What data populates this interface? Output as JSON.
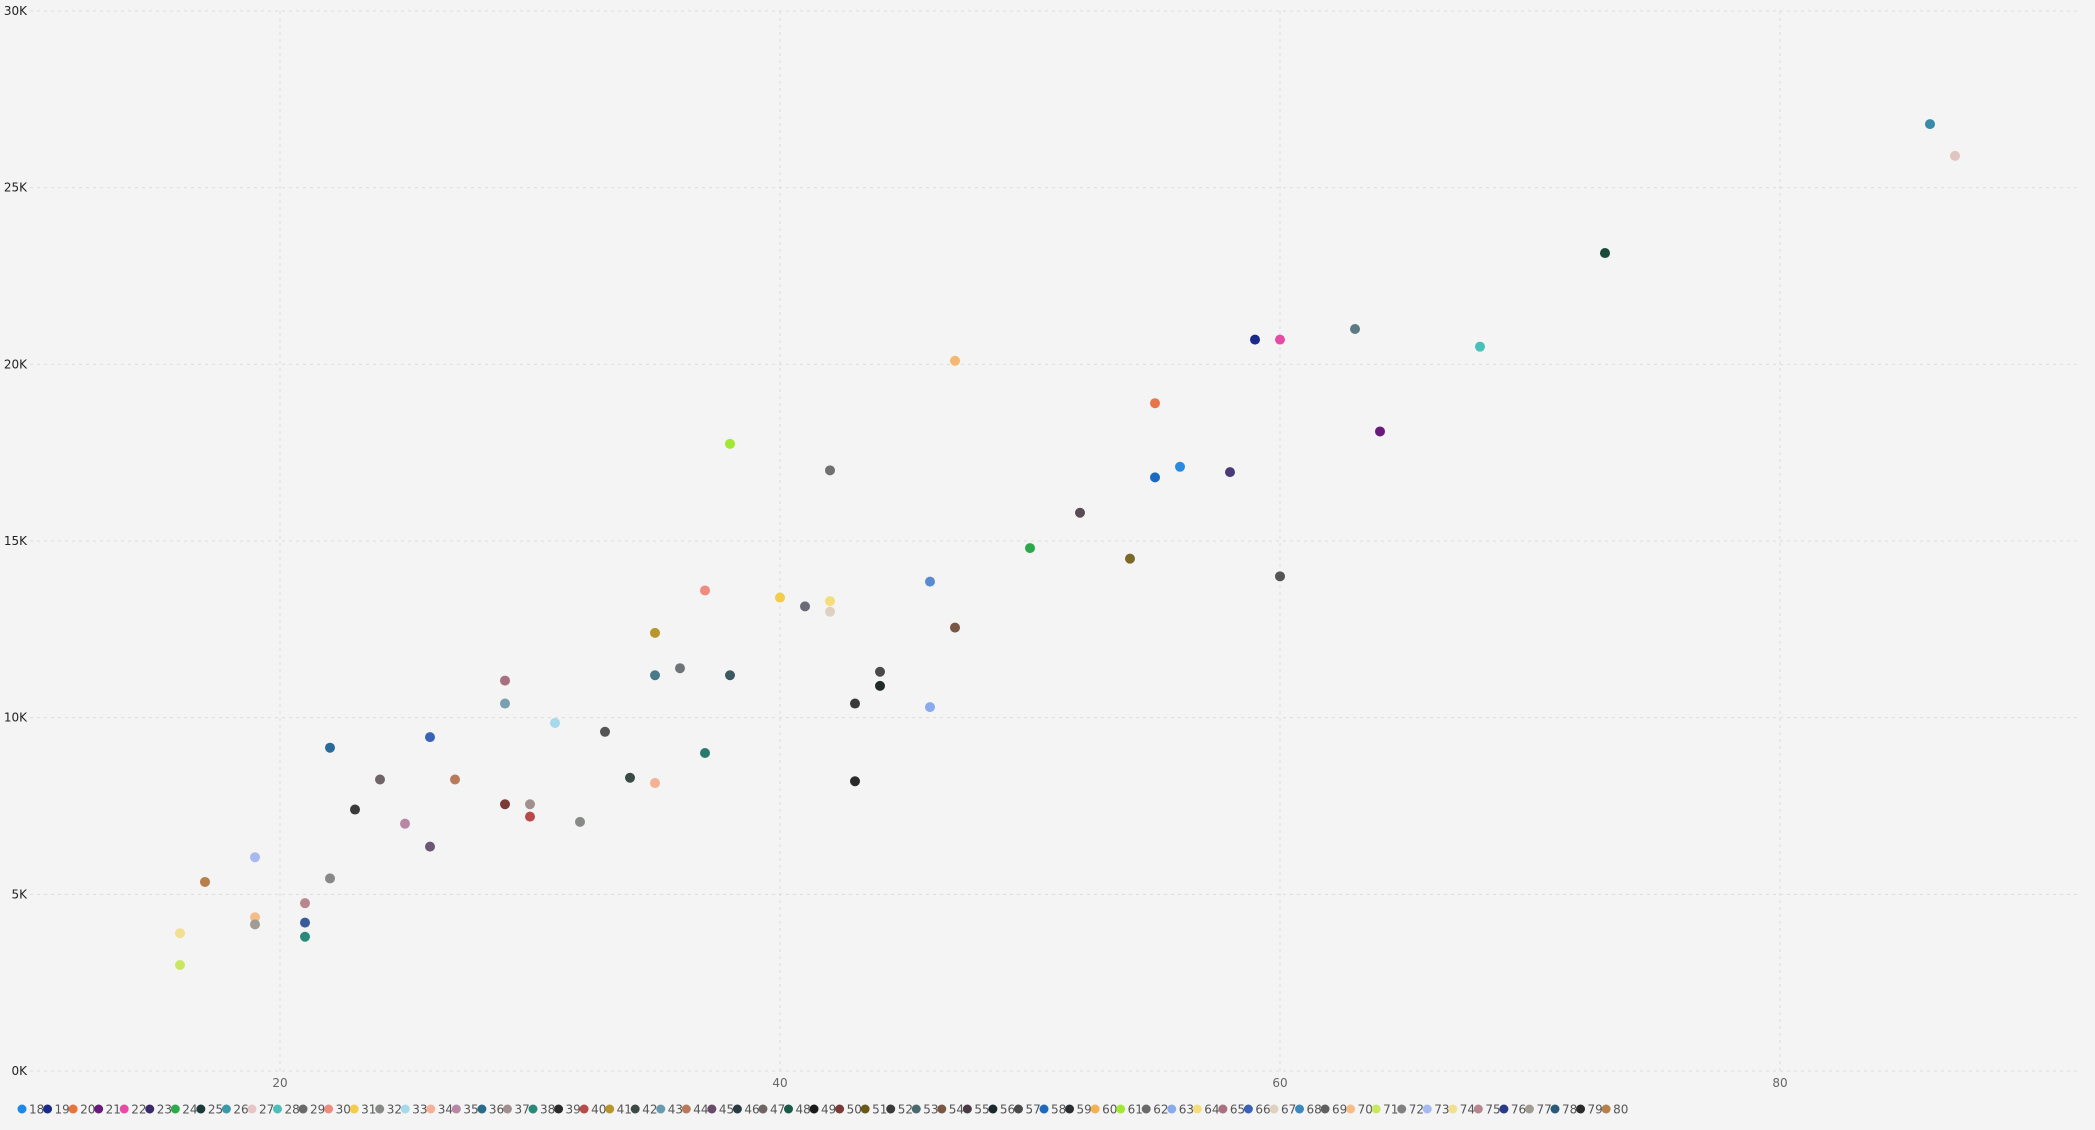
{
  "chart_data": {
    "type": "scatter",
    "title": "",
    "xlabel": "",
    "ylabel": "",
    "xlim": [
      10,
      92
    ],
    "ylim": [
      0,
      30000
    ],
    "xticks": [
      20,
      40,
      60,
      80
    ],
    "xtick_labels": [
      "20",
      "40",
      "60",
      "80"
    ],
    "yticks": [
      0,
      5000,
      10000,
      15000,
      20000,
      25000,
      30000
    ],
    "ytick_labels": [
      "0K",
      "5K",
      "10K",
      "15K",
      "20K",
      "25K",
      "30K"
    ],
    "grid": true,
    "legend_position": "bottom",
    "points": [
      {
        "x": 16,
        "y": 3900,
        "color": "#f2e090"
      },
      {
        "x": 16,
        "y": 3000,
        "color": "#c9e860"
      },
      {
        "x": 17,
        "y": 5350,
        "color": "#b5804a"
      },
      {
        "x": 19,
        "y": 6050,
        "color": "#a8b8f0"
      },
      {
        "x": 19,
        "y": 4350,
        "color": "#f5bd85"
      },
      {
        "x": 19,
        "y": 4150,
        "color": "#a09c92"
      },
      {
        "x": 21,
        "y": 4750,
        "color": "#b8868e"
      },
      {
        "x": 21,
        "y": 4200,
        "color": "#3a5a9a"
      },
      {
        "x": 21,
        "y": 3800,
        "color": "#2a8a7a"
      },
      {
        "x": 22,
        "y": 9150,
        "color": "#2a6a9a"
      },
      {
        "x": 22,
        "y": 5450,
        "color": "#888888"
      },
      {
        "x": 23,
        "y": 7400,
        "color": "#3a3a3a"
      },
      {
        "x": 24,
        "y": 8250,
        "color": "#706468"
      },
      {
        "x": 25,
        "y": 7000,
        "color": "#b887a5"
      },
      {
        "x": 26,
        "y": 9450,
        "color": "#3a62b8"
      },
      {
        "x": 26,
        "y": 6350,
        "color": "#6a5876"
      },
      {
        "x": 27,
        "y": 8250,
        "color": "#b87a5a"
      },
      {
        "x": 29,
        "y": 11050,
        "color": "#a87080"
      },
      {
        "x": 29,
        "y": 10400,
        "color": "#7aa0b0"
      },
      {
        "x": 29,
        "y": 7550,
        "color": "#7a3a36"
      },
      {
        "x": 30,
        "y": 7550,
        "color": "#a09090"
      },
      {
        "x": 30,
        "y": 7200,
        "color": "#b84a4a"
      },
      {
        "x": 31,
        "y": 9850,
        "color": "#a8d8ec"
      },
      {
        "x": 32,
        "y": 7050,
        "color": "#888a88"
      },
      {
        "x": 33,
        "y": 9600,
        "color": "#555555"
      },
      {
        "x": 34,
        "y": 8300,
        "color": "#3a4a44"
      },
      {
        "x": 35,
        "y": 12400,
        "color": "#b8962a"
      },
      {
        "x": 35,
        "y": 11200,
        "color": "#4a7a8a"
      },
      {
        "x": 35,
        "y": 8150,
        "color": "#f5b095"
      },
      {
        "x": 36,
        "y": 11400,
        "color": "#707478"
      },
      {
        "x": 37,
        "y": 13600,
        "color": "#ee8c82"
      },
      {
        "x": 37,
        "y": 9000,
        "color": "#2a7a6a"
      },
      {
        "x": 38,
        "y": 17750,
        "color": "#a2e830"
      },
      {
        "x": 38,
        "y": 11200,
        "color": "#3a5a60"
      },
      {
        "x": 40,
        "y": 13400,
        "color": "#f2cc4a"
      },
      {
        "x": 41,
        "y": 13150,
        "color": "#6a6a7a"
      },
      {
        "x": 42,
        "y": 17000,
        "color": "#707070"
      },
      {
        "x": 42,
        "y": 13300,
        "color": "#f5dd7a"
      },
      {
        "x": 42,
        "y": 13000,
        "color": "#e0d0c0"
      },
      {
        "x": 43,
        "y": 10400,
        "color": "#3a3a3a"
      },
      {
        "x": 43,
        "y": 8200,
        "color": "#2a2a2a"
      },
      {
        "x": 44,
        "y": 11300,
        "color": "#4a4a4a"
      },
      {
        "x": 44,
        "y": 10900,
        "color": "#222a2a"
      },
      {
        "x": 46,
        "y": 13850,
        "color": "#5a8ad0"
      },
      {
        "x": 46,
        "y": 10300,
        "color": "#8aaaf0"
      },
      {
        "x": 47,
        "y": 20100,
        "color": "#f5b870"
      },
      {
        "x": 47,
        "y": 12550,
        "color": "#7a5644"
      },
      {
        "x": 50,
        "y": 14800,
        "color": "#2aaa4a"
      },
      {
        "x": 52,
        "y": 15800,
        "color": "#5a4a54"
      },
      {
        "x": 54,
        "y": 14500,
        "color": "#7a6a2a"
      },
      {
        "x": 55,
        "y": 18900,
        "color": "#e8744a"
      },
      {
        "x": 55,
        "y": 16800,
        "color": "#1a6ac0"
      },
      {
        "x": 56,
        "y": 17100,
        "color": "#2a8ae0"
      },
      {
        "x": 58,
        "y": 16950,
        "color": "#4a3a7a"
      },
      {
        "x": 59,
        "y": 20700,
        "color": "#1a2a8a"
      },
      {
        "x": 60,
        "y": 20700,
        "color": "#e84aa8"
      },
      {
        "x": 60,
        "y": 14000,
        "color": "#555555"
      },
      {
        "x": 63,
        "y": 21000,
        "color": "#5a7a84"
      },
      {
        "x": 64,
        "y": 18100,
        "color": "#6a1a7a"
      },
      {
        "x": 68,
        "y": 20500,
        "color": "#4ac0b8"
      },
      {
        "x": 73,
        "y": 23150,
        "color": "#1a4a3a"
      },
      {
        "x": 86,
        "y": 26800,
        "color": "#3a8aaa"
      },
      {
        "x": 87,
        "y": 25900,
        "color": "#e0c4c0"
      }
    ]
  },
  "legend": [
    {
      "label": "18",
      "color": "#1a8ae6"
    },
    {
      "label": "19",
      "color": "#1a2a8a"
    },
    {
      "label": "20",
      "color": "#e8743a"
    },
    {
      "label": "21",
      "color": "#6a1a7a"
    },
    {
      "label": "22",
      "color": "#e84aa8"
    },
    {
      "label": "23",
      "color": "#3a2a6a"
    },
    {
      "label": "24",
      "color": "#2aaa4a"
    },
    {
      "label": "25",
      "color": "#1a3a3a"
    },
    {
      "label": "26",
      "color": "#3a9aa8"
    },
    {
      "label": "27",
      "color": "#e8c4c4"
    },
    {
      "label": "28",
      "color": "#4ac0b8"
    },
    {
      "label": "29",
      "color": "#6a6a6a"
    },
    {
      "label": "30",
      "color": "#ee8c82"
    },
    {
      "label": "31",
      "color": "#f2cc4a"
    },
    {
      "label": "32",
      "color": "#888a88"
    },
    {
      "label": "33",
      "color": "#a8d8ec"
    },
    {
      "label": "34",
      "color": "#f5b095"
    },
    {
      "label": "35",
      "color": "#b887a5"
    },
    {
      "label": "36",
      "color": "#2a6a8a"
    },
    {
      "label": "37",
      "color": "#a09090"
    },
    {
      "label": "38",
      "color": "#2a8a7a"
    },
    {
      "label": "39",
      "color": "#2a2a2a"
    },
    {
      "label": "40",
      "color": "#b84a4a"
    },
    {
      "label": "41",
      "color": "#b8962a"
    },
    {
      "label": "42",
      "color": "#3a4a44"
    },
    {
      "label": "43",
      "color": "#6a9ab0"
    },
    {
      "label": "44",
      "color": "#b87a5a"
    },
    {
      "label": "45",
      "color": "#6a4a6a"
    },
    {
      "label": "46",
      "color": "#2a3a44"
    },
    {
      "label": "47",
      "color": "#706464"
    },
    {
      "label": "48",
      "color": "#1a5a4a"
    },
    {
      "label": "49",
      "color": "#1a1a1a"
    },
    {
      "label": "50",
      "color": "#7a3a36"
    },
    {
      "label": "51",
      "color": "#6a5a1a"
    },
    {
      "label": "52",
      "color": "#3a3a3a"
    },
    {
      "label": "53",
      "color": "#4a6a70"
    },
    {
      "label": "54",
      "color": "#7a5644"
    },
    {
      "label": "55",
      "color": "#4a3a44"
    },
    {
      "label": "56",
      "color": "#1a2a2a"
    },
    {
      "label": "57",
      "color": "#4a4a4a"
    },
    {
      "label": "58",
      "color": "#1a6ac0"
    },
    {
      "label": "59",
      "color": "#2a2e30"
    },
    {
      "label": "60",
      "color": "#f5b050"
    },
    {
      "label": "61",
      "color": "#a2e830"
    },
    {
      "label": "62",
      "color": "#6a6a6a"
    },
    {
      "label": "63",
      "color": "#8aaaf0"
    },
    {
      "label": "64",
      "color": "#f5dd7a"
    },
    {
      "label": "65",
      "color": "#a87080"
    },
    {
      "label": "66",
      "color": "#3a62b8"
    },
    {
      "label": "67",
      "color": "#e0d0c0"
    },
    {
      "label": "68",
      "color": "#3a8ac0"
    },
    {
      "label": "69",
      "color": "#606060"
    },
    {
      "label": "70",
      "color": "#f5bd85"
    },
    {
      "label": "71",
      "color": "#c9e860"
    },
    {
      "label": "72",
      "color": "#808080"
    },
    {
      "label": "73",
      "color": "#a8b8f0"
    },
    {
      "label": "74",
      "color": "#f2e090"
    },
    {
      "label": "75",
      "color": "#b8868e"
    },
    {
      "label": "76",
      "color": "#2a3a8a"
    },
    {
      "label": "77",
      "color": "#a09c92"
    },
    {
      "label": "78",
      "color": "#2a5a7a"
    },
    {
      "label": "79",
      "color": "#2a2a2a"
    },
    {
      "label": "80",
      "color": "#b5804a"
    }
  ]
}
